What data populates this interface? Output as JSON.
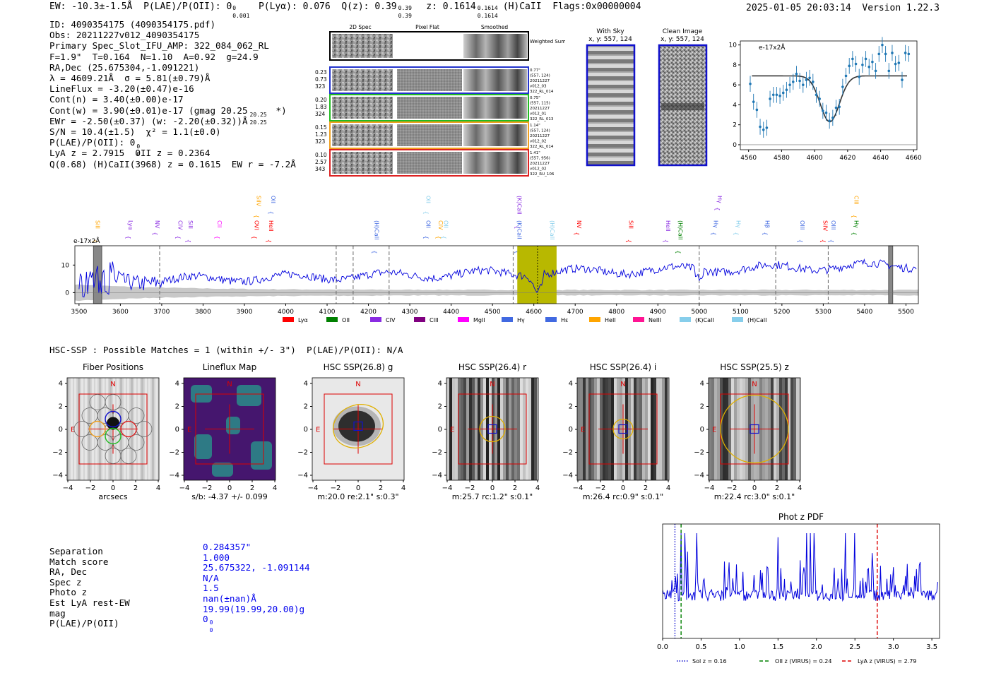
{
  "header": {
    "ew": "EW: -10.3±-1.5Å",
    "plae_label": "P(LAE)/P(OII): 0",
    "plae_sub": "0.001",
    "plae_sup": "0",
    "plya": "P(Lyα): 0.076",
    "qz_label": "Q(z): 0.39",
    "qz_sup": "0.39",
    "qz_sub": "0.39",
    "z_label": "z: 0.1614",
    "z_sup": "0.1614",
    "z_sub": "0.1614",
    "z_tag": "(H)CaII",
    "flags": "Flags:0x00000004",
    "datetime": "2025-01-05 20:03:14",
    "version": "Version 1.22.3"
  },
  "info": {
    "id": "ID: 4090354175 (4090354175.pdf)",
    "obs": "Obs: 20211227v012_4090354175",
    "primary": "Primary Spec_Slot_IFU_AMP: 322_084_062_RL",
    "params": "F=1.9\"  T=0.164  N=1.10  A=0.92  g=24.9",
    "radec": "RA,Dec (25.675304,-1.091221)",
    "lambda": "λ = 4609.21Å  σ = 5.81(±0.79)Å",
    "lineflux": "LineFlux = -3.20(±0.47)e-16",
    "contn": "Cont(n) = 3.40(±0.00)e-17",
    "contw": "Cont(w) = 3.90(±0.01)e-17 (gmag 20.25",
    "contw_sup": "20.25",
    "contw_sub": "20.25",
    "contw_end": "*)",
    "ewr": "EWr = -2.50(±0.37) (w: -2.20(±0.32))Å",
    "sn": "S/N = 10.4(±1.5)  χ² = 1.1(±0.0)",
    "plae": "P(LAE)/P(OII): 0",
    "plae_sup": "0",
    "plae_sub": "0",
    "lya": "LyA z = 2.7915  OII z = 0.2364",
    "q": "Q(0.68) (H)CaII(3968) z = 0.1615  EW r = -7.2Å"
  },
  "cutouts": {
    "col_titles": [
      "2D Spec",
      "Pixel Flat",
      "Smoothed"
    ],
    "weighted_sum": "Weighted Sum",
    "rows": [
      {
        "left": [
          "0.23",
          "0.73",
          "323"
        ],
        "right": [
          "0.77\"",
          "(557, 124)",
          "20211227",
          "v012_03",
          "322_RL_014"
        ],
        "color": "#2233cc"
      },
      {
        "left": [
          "0.20",
          "1.83",
          "324"
        ],
        "right": [
          "0.75\"",
          "(557, 115)",
          "20211227",
          "v012_01",
          "322_RL_013"
        ],
        "color": "#22bb22"
      },
      {
        "left": [
          "0.15",
          "1.23",
          "323"
        ],
        "right": [
          "1.14\"",
          "(557, 124)",
          "20211227",
          "v012_02",
          "322_RL_014"
        ],
        "color": "#f0a020"
      },
      {
        "left": [
          "0.10",
          "2.57",
          "343"
        ],
        "right": [
          "1.41\"",
          "(557, 956)",
          "20211227",
          "v012_02",
          "322_RU_106"
        ],
        "color": "#dd2222"
      }
    ]
  },
  "sky": {
    "with_sky_title": "With Sky",
    "with_sky_xy": "x, y: 557, 124",
    "clean_title": "Clean Image",
    "clean_xy": "x, y: 557, 124"
  },
  "chart_data": [
    {
      "type": "line",
      "name": "line-fit",
      "ylabel_unit": "e-17x2Å",
      "xlim": [
        4555,
        4662
      ],
      "ylim": [
        -0.5,
        10.4
      ],
      "xticks": [
        4560,
        4580,
        4600,
        4620,
        4640,
        4660
      ],
      "yticks": [
        0,
        2,
        4,
        6,
        8,
        10
      ],
      "x": [
        4561,
        4563,
        4565,
        4567,
        4569,
        4571,
        4573,
        4575,
        4577,
        4579,
        4581,
        4583,
        4585,
        4587,
        4589,
        4591,
        4593,
        4595,
        4597,
        4599,
        4601,
        4603,
        4605,
        4607,
        4609,
        4611,
        4613,
        4615,
        4617,
        4619,
        4621,
        4623,
        4625,
        4627,
        4629,
        4631,
        4633,
        4635,
        4637,
        4639,
        4641,
        4643,
        4645,
        4647,
        4649,
        4651,
        4653,
        4655,
        4657
      ],
      "y": [
        6.1,
        4.3,
        3.5,
        1.8,
        1.5,
        1.7,
        4.6,
        5.0,
        5.0,
        4.9,
        5.2,
        5.5,
        6.0,
        6.3,
        7.1,
        6.4,
        6.0,
        6.5,
        6.7,
        6.3,
        5.0,
        4.6,
        3.4,
        3.2,
        2.4,
        2.7,
        3.7,
        3.8,
        5.8,
        6.9,
        7.9,
        8.6,
        8.1,
        6.8,
        8.0,
        8.6,
        7.8,
        8.3,
        7.4,
        9.1,
        10.0,
        9.1,
        7.4,
        9.2,
        8.1,
        8.2,
        6.5,
        9.2,
        9.1
      ],
      "fit": {
        "continuum": 6.9,
        "center": 4609.2,
        "sigma": 5.81,
        "depth": 4.6
      }
    },
    {
      "type": "line",
      "name": "full-spectrum",
      "ylabel_unit": "e-17x2Å",
      "xlim": [
        3490,
        5530
      ],
      "ylim": [
        -4,
        17
      ],
      "xticks": [
        3500,
        3600,
        3700,
        3800,
        3900,
        4000,
        4100,
        4200,
        4300,
        4400,
        4500,
        4600,
        4700,
        4800,
        4900,
        5000,
        5100,
        5200,
        5300,
        5400,
        5500
      ],
      "yticks": [
        0,
        10
      ],
      "highlight_range": [
        4560,
        4655
      ],
      "marker_line": 4609,
      "masked_ranges": [
        [
          3535,
          3555
        ],
        [
          5458,
          5468
        ]
      ],
      "dashed_lines": [
        3695,
        4122,
        4163,
        4250,
        4550,
        5000,
        5185,
        5312
      ],
      "legend": [
        {
          "label": "Lyα",
          "color": "#ff0000"
        },
        {
          "label": "OII",
          "color": "#008000"
        },
        {
          "label": "CIV",
          "color": "#8a2be2"
        },
        {
          "label": "CIII",
          "color": "#800080"
        },
        {
          "label": "MgII",
          "color": "#ff00ff"
        },
        {
          "label": "Hγ",
          "color": "#4169e1"
        },
        {
          "label": "Hε",
          "color": "#4169e1"
        },
        {
          "label": "HeII",
          "color": "#ffa500"
        },
        {
          "label": "NeIII",
          "color": "#ff1493"
        },
        {
          "label": "(K)CaII",
          "color": "#87ceeb"
        },
        {
          "label": "(H)CaII",
          "color": "#87ceeb"
        }
      ],
      "line_labels": [
        {
          "text": "SiII",
          "x": 3540,
          "color": "#ffa500",
          "row": 1
        },
        {
          "text": "Lyα",
          "x": 3620,
          "color": "#8a2be2",
          "row": 1
        },
        {
          "text": "NV",
          "x": 3685,
          "color": "#8a2be2",
          "row": 1
        },
        {
          "text": "CIV",
          "x": 3740,
          "color": "#8a2be2",
          "row": 1
        },
        {
          "text": "SiII",
          "x": 3765,
          "color": "#8a2be2",
          "row": 1
        },
        {
          "text": "CII",
          "x": 3835,
          "color": "#ff00ff",
          "row": 1
        },
        {
          "text": "OVI",
          "x": 3925,
          "color": "#ff0000",
          "row": 1
        },
        {
          "text": "SiIV",
          "x": 3930,
          "color": "#ffa500",
          "row": 0
        },
        {
          "text": "HeII",
          "x": 3960,
          "color": "#ff0000",
          "row": 1
        },
        {
          "text": "OII",
          "x": 3965,
          "color": "#4169e1",
          "row": 0
        },
        {
          "text": "(H)CaII",
          "x": 4215,
          "color": "#4169e1",
          "row": 1
        },
        {
          "text": "OII",
          "x": 4340,
          "color": "#87ceeb",
          "row": 0
        },
        {
          "text": "OII",
          "x": 4340,
          "color": "#4169e1",
          "row": 1
        },
        {
          "text": "CIV",
          "x": 4370,
          "color": "#ffa500",
          "row": 1
        },
        {
          "text": "OII",
          "x": 4383,
          "color": "#87ceeb",
          "row": 1
        },
        {
          "text": "(K)CaII",
          "x": 4560,
          "color": "#8a2be2",
          "row": 0
        },
        {
          "text": "(K)CaII",
          "x": 4560,
          "color": "#4169e1",
          "row": 1
        },
        {
          "text": "(H)CaII",
          "x": 4640,
          "color": "#87ceeb",
          "row": 1
        },
        {
          "text": "NV",
          "x": 4705,
          "color": "#ff0000",
          "row": 1
        },
        {
          "text": "SiII",
          "x": 4830,
          "color": "#ff0000",
          "row": 1
        },
        {
          "text": "HeII",
          "x": 4920,
          "color": "#8a2be2",
          "row": 1
        },
        {
          "text": "(H)CaII",
          "x": 4950,
          "color": "#008000",
          "row": 1
        },
        {
          "text": "Hγ",
          "x": 5045,
          "color": "#8a2be2",
          "row": 0
        },
        {
          "text": "Hγ",
          "x": 5035,
          "color": "#4169e1",
          "row": 1
        },
        {
          "text": "Hγ",
          "x": 5090,
          "color": "#87ceeb",
          "row": 1
        },
        {
          "text": "Hβ",
          "x": 5160,
          "color": "#4169e1",
          "row": 1
        },
        {
          "text": "OIII",
          "x": 5245,
          "color": "#4169e1",
          "row": 1
        },
        {
          "text": "SiIV",
          "x": 5300,
          "color": "#ff0000",
          "row": 1
        },
        {
          "text": "OIII",
          "x": 5320,
          "color": "#4169e1",
          "row": 1
        },
        {
          "text": "CIII",
          "x": 5375,
          "color": "#ffa500",
          "row": 0
        },
        {
          "text": "Hγ",
          "x": 5375,
          "color": "#008000",
          "row": 1
        }
      ]
    },
    {
      "type": "line",
      "name": "phot-z-pdf",
      "title": "Phot z PDF",
      "xlim": [
        0,
        3.6
      ],
      "xticks": [
        0.0,
        0.5,
        1.0,
        1.5,
        2.0,
        2.5,
        3.0,
        3.5
      ],
      "vlines": [
        {
          "label": "Sol z = 0.16",
          "x": 0.16,
          "color": "#0000cc",
          "style": "dotted"
        },
        {
          "label": "OII z (VIRUS) = 0.24",
          "x": 0.24,
          "color": "#008000",
          "style": "dashed"
        },
        {
          "label": "LyA z (VIRUS) = 2.79",
          "x": 2.79,
          "color": "#dd0000",
          "style": "dashed"
        }
      ]
    }
  ],
  "hsc": {
    "title": "HSC-SSP : Possible Matches = 1 (within +/- 3\")  P(LAE)/P(OII): N/A",
    "panels": [
      {
        "title": "Fiber Positions",
        "caption": "arcsecs",
        "kind": "fiber"
      },
      {
        "title": "Lineflux Map",
        "caption": "s/b: -4.37 +/- 0.099",
        "kind": "flux"
      },
      {
        "title": "HSC SSP(26.8) g",
        "caption": "m:20.0  re:2.1\"  s:0.3\"",
        "kind": "g"
      },
      {
        "title": "HSC SSP(26.4) r",
        "caption": "m:25.7  rc:1.2\"  s:0.1\"",
        "kind": "stripe"
      },
      {
        "title": "HSC SSP(26.4) i",
        "caption": "m:26.4  rc:0.9\"  s:0.1\"",
        "kind": "stripe"
      },
      {
        "title": "HSC SSP(25.5) z",
        "caption": "m:22.4  rc:3.0\"  s:0.1\"",
        "kind": "stripe"
      }
    ],
    "compass_n": "N",
    "compass_e": "E",
    "ticks": [
      "4",
      "2",
      "0",
      "−2",
      "−4"
    ],
    "xticks": [
      "−4",
      "−2",
      "0",
      "2",
      "4"
    ]
  },
  "match": {
    "labels": [
      "Separation",
      "Match score",
      "RA, Dec",
      "Spec z",
      "Photo z",
      "Est LyA rest-EW",
      "mag",
      "P(LAE)/P(OII)"
    ],
    "values": [
      "0.284357\"",
      "1.000",
      "25.675322, -1.091144",
      "N/A",
      "1.5",
      "nan(±nan)Å",
      "19.99(19.99,20.00)g",
      "0"
    ],
    "plae_sup": "0",
    "plae_sub": "0"
  }
}
